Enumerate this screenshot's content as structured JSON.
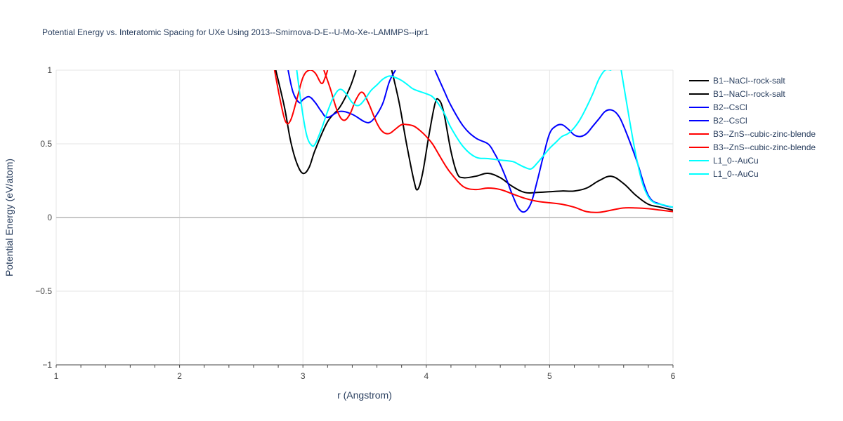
{
  "chart_data": {
    "type": "line",
    "title": "Potential Energy vs. Interatomic Spacing for UXe Using 2013--Smirnova-D-E--U-Mo-Xe--LAMMPS--ipr1",
    "xlabel": "r (Angstrom)",
    "ylabel": "Potential Energy (eV/atom)",
    "xlim": [
      1,
      6
    ],
    "ylim": [
      -1,
      1
    ],
    "x_ticks": [
      1,
      2,
      3,
      4,
      5,
      6
    ],
    "x_tick_labels": [
      "1",
      "2",
      "3",
      "4",
      "5",
      "6"
    ],
    "y_ticks": [
      -1,
      -0.5,
      0,
      0.5,
      1
    ],
    "y_tick_labels": [
      "−1",
      "−0.5",
      "0",
      "0.5",
      "1"
    ],
    "grid": true,
    "legend_position": "right",
    "series": [
      {
        "name": "B1--NaCl--rock-salt",
        "color": "#000000",
        "x": [
          2.78,
          2.85,
          2.9,
          2.95,
          3.0,
          3.05,
          3.1,
          3.2,
          3.3,
          3.38,
          3.43
        ],
        "y": [
          1.0,
          0.75,
          0.52,
          0.37,
          0.3,
          0.34,
          0.46,
          0.65,
          0.75,
          0.88,
          1.0
        ]
      },
      {
        "name": "B1--NaCl--rock-salt",
        "color": "#000000",
        "x": [
          3.72,
          3.78,
          3.84,
          3.9,
          3.93,
          3.97,
          4.02,
          4.07,
          4.1,
          4.14,
          4.2,
          4.25,
          4.3,
          4.4,
          4.5,
          4.6,
          4.7,
          4.8,
          4.9,
          5.0,
          5.1,
          5.2,
          5.3,
          5.4,
          5.5,
          5.6,
          5.7,
          5.8,
          5.9,
          6.0
        ],
        "y": [
          1.0,
          0.78,
          0.5,
          0.25,
          0.19,
          0.3,
          0.55,
          0.77,
          0.8,
          0.72,
          0.45,
          0.3,
          0.27,
          0.28,
          0.3,
          0.27,
          0.21,
          0.17,
          0.17,
          0.175,
          0.18,
          0.18,
          0.2,
          0.25,
          0.28,
          0.23,
          0.15,
          0.09,
          0.07,
          0.05
        ]
      },
      {
        "name": "B2--CsCl",
        "color": "#0000ff",
        "x": [
          2.88,
          2.92,
          2.97,
          3.0,
          3.05,
          3.1,
          3.15,
          3.2,
          3.3,
          3.4,
          3.5,
          3.55,
          3.6,
          3.65,
          3.7,
          3.75
        ],
        "y": [
          1.0,
          0.85,
          0.78,
          0.8,
          0.82,
          0.78,
          0.72,
          0.68,
          0.72,
          0.7,
          0.65,
          0.65,
          0.7,
          0.78,
          0.92,
          1.0
        ]
      },
      {
        "name": "B2--CsCl",
        "color": "#0000ff",
        "x": [
          4.07,
          4.15,
          4.2,
          4.3,
          4.4,
          4.5,
          4.55,
          4.6,
          4.65,
          4.7,
          4.75,
          4.8,
          4.85,
          4.9,
          4.95,
          5.0,
          5.05,
          5.1,
          5.15,
          5.2,
          5.25,
          5.3,
          5.35,
          5.4,
          5.45,
          5.5,
          5.55,
          5.6,
          5.7,
          5.8,
          5.9,
          6.0
        ],
        "y": [
          1.0,
          0.85,
          0.76,
          0.62,
          0.54,
          0.5,
          0.44,
          0.36,
          0.26,
          0.15,
          0.06,
          0.04,
          0.1,
          0.25,
          0.42,
          0.57,
          0.62,
          0.63,
          0.6,
          0.56,
          0.55,
          0.57,
          0.62,
          0.67,
          0.72,
          0.73,
          0.7,
          0.62,
          0.4,
          0.15,
          0.09,
          0.07
        ]
      },
      {
        "name": "B3--ZnS--cubic-zinc-blende",
        "color": "#ff0000",
        "x": [
          2.77,
          2.82,
          2.86,
          2.9,
          2.95,
          3.0,
          3.05,
          3.1,
          3.15,
          3.18,
          3.2
        ],
        "y": [
          1.0,
          0.78,
          0.65,
          0.66,
          0.8,
          0.95,
          1.0,
          0.98,
          0.91,
          0.95,
          1.0
        ]
      },
      {
        "name": "B3--ZnS--cubic-zinc-blende",
        "color": "#ff0000",
        "x": [
          3.17,
          3.22,
          3.28,
          3.33,
          3.38,
          3.43,
          3.48,
          3.53,
          3.6,
          3.65,
          3.7,
          3.75,
          3.8,
          3.85,
          3.9,
          3.95,
          4.0,
          4.05,
          4.1,
          4.15,
          4.2,
          4.3,
          4.4,
          4.5,
          4.6,
          4.7,
          4.8,
          4.9,
          5.0,
          5.1,
          5.2,
          5.3,
          5.4,
          5.5,
          5.6,
          5.7,
          5.8,
          5.9,
          6.0
        ],
        "y": [
          1.0,
          0.88,
          0.72,
          0.66,
          0.7,
          0.8,
          0.85,
          0.78,
          0.64,
          0.58,
          0.57,
          0.6,
          0.63,
          0.63,
          0.62,
          0.59,
          0.55,
          0.5,
          0.43,
          0.36,
          0.3,
          0.21,
          0.19,
          0.2,
          0.19,
          0.16,
          0.13,
          0.11,
          0.1,
          0.09,
          0.07,
          0.04,
          0.035,
          0.05,
          0.065,
          0.065,
          0.06,
          0.05,
          0.04
        ]
      },
      {
        "name": "L1_0--AuCu",
        "color": "#00ffff",
        "x": [
          2.95,
          2.99,
          3.03,
          3.07,
          3.1,
          3.15,
          3.2,
          3.25,
          3.3,
          3.35,
          3.4,
          3.45,
          3.5,
          3.55,
          3.6,
          3.65,
          3.7,
          3.75,
          3.8,
          3.85,
          3.9,
          4.0,
          4.05,
          4.1,
          4.15,
          4.2,
          4.3,
          4.4,
          4.5,
          4.6,
          4.7,
          4.75,
          4.8,
          4.85,
          4.9,
          4.95,
          5.0,
          5.05,
          5.1,
          5.15,
          5.2,
          5.25,
          5.3,
          5.35,
          5.4,
          5.45,
          5.5
        ],
        "y": [
          1.0,
          0.75,
          0.56,
          0.49,
          0.5,
          0.6,
          0.72,
          0.82,
          0.87,
          0.84,
          0.78,
          0.76,
          0.8,
          0.86,
          0.9,
          0.94,
          0.96,
          0.95,
          0.93,
          0.9,
          0.87,
          0.84,
          0.82,
          0.77,
          0.7,
          0.61,
          0.48,
          0.41,
          0.4,
          0.39,
          0.38,
          0.36,
          0.34,
          0.33,
          0.37,
          0.42,
          0.47,
          0.51,
          0.55,
          0.57,
          0.61,
          0.67,
          0.75,
          0.84,
          0.94,
          1.0,
          1.0
        ]
      },
      {
        "name": "L1_0--AuCu",
        "color": "#00ffff",
        "x": [
          5.58,
          5.65,
          5.7,
          5.75,
          5.8,
          5.85,
          5.9,
          5.95,
          6.0
        ],
        "y": [
          1.0,
          0.65,
          0.42,
          0.24,
          0.14,
          0.1,
          0.09,
          0.08,
          0.07
        ]
      }
    ]
  }
}
